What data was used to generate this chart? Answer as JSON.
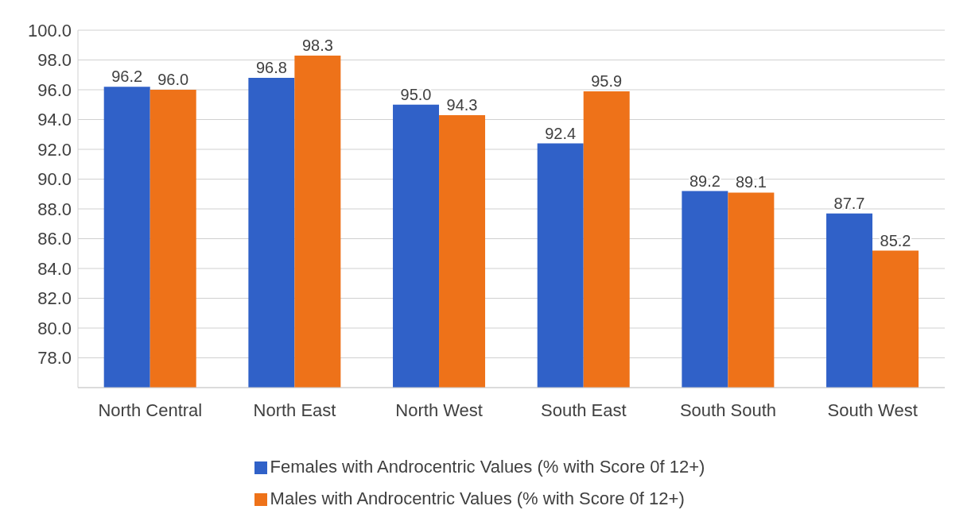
{
  "chart_data": {
    "type": "bar",
    "categories": [
      "North Central",
      "North East",
      "North West",
      "South East",
      "South South",
      "South West"
    ],
    "series": [
      {
        "name": "Females with Androcentric Values (% with Score 0f 12+)",
        "color": "#3061c8",
        "values": [
          96.2,
          96.8,
          95.0,
          92.4,
          89.2,
          87.7
        ],
        "value_labels": [
          "96.2",
          "96.8",
          "95.0",
          "92.4",
          "89.2",
          "87.7"
        ]
      },
      {
        "name": "Males with Androcentric Values (% with Score 0f 12+)",
        "color": "#ee7219",
        "values": [
          96.0,
          98.3,
          94.3,
          95.9,
          89.1,
          85.2
        ],
        "value_labels": [
          "96.0",
          "98.3",
          "94.3",
          "95.9",
          "89.1",
          "85.2"
        ]
      }
    ],
    "ylim": [
      76,
      100
    ],
    "yticks": [
      {
        "value": 78,
        "label": "78.0"
      },
      {
        "value": 80,
        "label": "80.0"
      },
      {
        "value": 82,
        "label": "82.0"
      },
      {
        "value": 84,
        "label": "84.0"
      },
      {
        "value": 86,
        "label": "86.0"
      },
      {
        "value": 88,
        "label": "88.0"
      },
      {
        "value": 90,
        "label": "90.0"
      },
      {
        "value": 92,
        "label": "92.0"
      },
      {
        "value": 94,
        "label": "94.0"
      },
      {
        "value": 96,
        "label": "96.0"
      },
      {
        "value": 98,
        "label": "98.0"
      },
      {
        "value": 100,
        "label": "100.0"
      }
    ],
    "grid": "y",
    "legend": "bottom"
  }
}
